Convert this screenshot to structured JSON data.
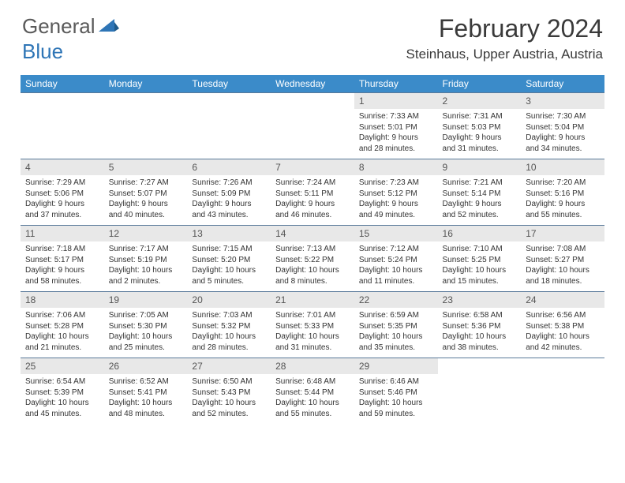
{
  "logo": {
    "text1": "General",
    "text2": "Blue"
  },
  "title": "February 2024",
  "location": "Steinhaus, Upper Austria, Austria",
  "colors": {
    "header_bg": "#3b8bc9",
    "header_text": "#ffffff",
    "daynum_bg": "#e8e8e8",
    "daynum_text": "#555555",
    "border": "#5a7a9a",
    "logo_gray": "#5a5a5a",
    "logo_blue": "#2e75b6"
  },
  "weekdays": [
    "Sunday",
    "Monday",
    "Tuesday",
    "Wednesday",
    "Thursday",
    "Friday",
    "Saturday"
  ],
  "weeks": [
    [
      null,
      null,
      null,
      null,
      {
        "n": "1",
        "sr": "7:33 AM",
        "ss": "5:01 PM",
        "dl": "9 hours and 28 minutes."
      },
      {
        "n": "2",
        "sr": "7:31 AM",
        "ss": "5:03 PM",
        "dl": "9 hours and 31 minutes."
      },
      {
        "n": "3",
        "sr": "7:30 AM",
        "ss": "5:04 PM",
        "dl": "9 hours and 34 minutes."
      }
    ],
    [
      {
        "n": "4",
        "sr": "7:29 AM",
        "ss": "5:06 PM",
        "dl": "9 hours and 37 minutes."
      },
      {
        "n": "5",
        "sr": "7:27 AM",
        "ss": "5:07 PM",
        "dl": "9 hours and 40 minutes."
      },
      {
        "n": "6",
        "sr": "7:26 AM",
        "ss": "5:09 PM",
        "dl": "9 hours and 43 minutes."
      },
      {
        "n": "7",
        "sr": "7:24 AM",
        "ss": "5:11 PM",
        "dl": "9 hours and 46 minutes."
      },
      {
        "n": "8",
        "sr": "7:23 AM",
        "ss": "5:12 PM",
        "dl": "9 hours and 49 minutes."
      },
      {
        "n": "9",
        "sr": "7:21 AM",
        "ss": "5:14 PM",
        "dl": "9 hours and 52 minutes."
      },
      {
        "n": "10",
        "sr": "7:20 AM",
        "ss": "5:16 PM",
        "dl": "9 hours and 55 minutes."
      }
    ],
    [
      {
        "n": "11",
        "sr": "7:18 AM",
        "ss": "5:17 PM",
        "dl": "9 hours and 58 minutes."
      },
      {
        "n": "12",
        "sr": "7:17 AM",
        "ss": "5:19 PM",
        "dl": "10 hours and 2 minutes."
      },
      {
        "n": "13",
        "sr": "7:15 AM",
        "ss": "5:20 PM",
        "dl": "10 hours and 5 minutes."
      },
      {
        "n": "14",
        "sr": "7:13 AM",
        "ss": "5:22 PM",
        "dl": "10 hours and 8 minutes."
      },
      {
        "n": "15",
        "sr": "7:12 AM",
        "ss": "5:24 PM",
        "dl": "10 hours and 11 minutes."
      },
      {
        "n": "16",
        "sr": "7:10 AM",
        "ss": "5:25 PM",
        "dl": "10 hours and 15 minutes."
      },
      {
        "n": "17",
        "sr": "7:08 AM",
        "ss": "5:27 PM",
        "dl": "10 hours and 18 minutes."
      }
    ],
    [
      {
        "n": "18",
        "sr": "7:06 AM",
        "ss": "5:28 PM",
        "dl": "10 hours and 21 minutes."
      },
      {
        "n": "19",
        "sr": "7:05 AM",
        "ss": "5:30 PM",
        "dl": "10 hours and 25 minutes."
      },
      {
        "n": "20",
        "sr": "7:03 AM",
        "ss": "5:32 PM",
        "dl": "10 hours and 28 minutes."
      },
      {
        "n": "21",
        "sr": "7:01 AM",
        "ss": "5:33 PM",
        "dl": "10 hours and 31 minutes."
      },
      {
        "n": "22",
        "sr": "6:59 AM",
        "ss": "5:35 PM",
        "dl": "10 hours and 35 minutes."
      },
      {
        "n": "23",
        "sr": "6:58 AM",
        "ss": "5:36 PM",
        "dl": "10 hours and 38 minutes."
      },
      {
        "n": "24",
        "sr": "6:56 AM",
        "ss": "5:38 PM",
        "dl": "10 hours and 42 minutes."
      }
    ],
    [
      {
        "n": "25",
        "sr": "6:54 AM",
        "ss": "5:39 PM",
        "dl": "10 hours and 45 minutes."
      },
      {
        "n": "26",
        "sr": "6:52 AM",
        "ss": "5:41 PM",
        "dl": "10 hours and 48 minutes."
      },
      {
        "n": "27",
        "sr": "6:50 AM",
        "ss": "5:43 PM",
        "dl": "10 hours and 52 minutes."
      },
      {
        "n": "28",
        "sr": "6:48 AM",
        "ss": "5:44 PM",
        "dl": "10 hours and 55 minutes."
      },
      {
        "n": "29",
        "sr": "6:46 AM",
        "ss": "5:46 PM",
        "dl": "10 hours and 59 minutes."
      },
      null,
      null
    ]
  ],
  "labels": {
    "sunrise": "Sunrise:",
    "sunset": "Sunset:",
    "daylight": "Daylight:"
  }
}
